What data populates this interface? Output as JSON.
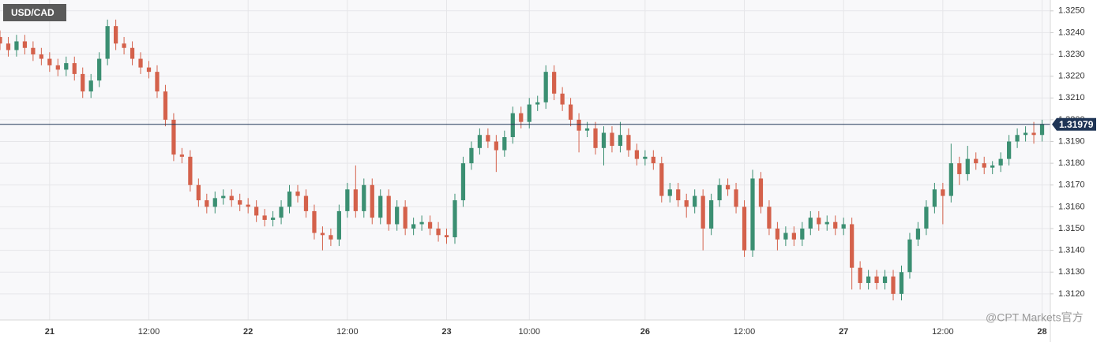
{
  "chart_data": {
    "type": "candlestick",
    "title": "USD/CAD",
    "watermark": "@CPT Markets官方",
    "up_color": "#3b8f72",
    "down_color": "#d4614b",
    "grid": true,
    "xlim": [
      0,
      127
    ],
    "xticks": [
      {
        "value": 6,
        "label": "21"
      },
      {
        "value": 18,
        "label": "12:00"
      },
      {
        "value": 30,
        "label": "22"
      },
      {
        "value": 42,
        "label": "12:00"
      },
      {
        "value": 54,
        "label": "23"
      },
      {
        "value": 64,
        "label": "10:00"
      },
      {
        "value": 78,
        "label": "26"
      },
      {
        "value": 90,
        "label": "12:00"
      },
      {
        "value": 102,
        "label": "27"
      },
      {
        "value": 114,
        "label": "12:00"
      },
      {
        "value": 126,
        "label": "28"
      }
    ],
    "ylim": [
      1.3108,
      1.3255
    ],
    "yticks": [
      {
        "value": 1.312,
        "label": "1.3120"
      },
      {
        "value": 1.313,
        "label": "1.3130"
      },
      {
        "value": 1.314,
        "label": "1.3140"
      },
      {
        "value": 1.315,
        "label": "1.3150"
      },
      {
        "value": 1.316,
        "label": "1.3160"
      },
      {
        "value": 1.317,
        "label": "1.3170"
      },
      {
        "value": 1.318,
        "label": "1.3180"
      },
      {
        "value": 1.319,
        "label": "1.3190"
      },
      {
        "value": 1.32,
        "label": "1.3200"
      },
      {
        "value": 1.321,
        "label": "1.3210"
      },
      {
        "value": 1.322,
        "label": "1.3220"
      },
      {
        "value": 1.323,
        "label": "1.3230"
      },
      {
        "value": 1.324,
        "label": "1.3240"
      },
      {
        "value": 1.325,
        "label": "1.3250"
      }
    ],
    "current_price": 1.31979,
    "current_price_color": "#1f3556",
    "ohlc": [
      [
        1.3238,
        1.3241,
        1.3232,
        1.3235
      ],
      [
        1.3235,
        1.3238,
        1.3229,
        1.3232
      ],
      [
        1.3232,
        1.3239,
        1.3229,
        1.3236
      ],
      [
        1.3236,
        1.3239,
        1.323,
        1.3233
      ],
      [
        1.3233,
        1.3236,
        1.3227,
        1.323
      ],
      [
        1.323,
        1.3233,
        1.3225,
        1.3228
      ],
      [
        1.3228,
        1.3231,
        1.3222,
        1.3225
      ],
      [
        1.3225,
        1.3228,
        1.322,
        1.3223
      ],
      [
        1.3223,
        1.3229,
        1.322,
        1.3226
      ],
      [
        1.3226,
        1.3229,
        1.3218,
        1.3221
      ],
      [
        1.3221,
        1.3224,
        1.321,
        1.3213
      ],
      [
        1.3213,
        1.3221,
        1.321,
        1.3218
      ],
      [
        1.3218,
        1.3231,
        1.3215,
        1.3228
      ],
      [
        1.3228,
        1.3246,
        1.3225,
        1.3243
      ],
      [
        1.3243,
        1.3246,
        1.3232,
        1.3235
      ],
      [
        1.3235,
        1.3238,
        1.323,
        1.3233
      ],
      [
        1.3233,
        1.3236,
        1.3225,
        1.3228
      ],
      [
        1.3228,
        1.3231,
        1.3221,
        1.3224
      ],
      [
        1.3224,
        1.3227,
        1.3219,
        1.3222
      ],
      [
        1.3222,
        1.3225,
        1.321,
        1.3213
      ],
      [
        1.3213,
        1.3216,
        1.3197,
        1.32
      ],
      [
        1.32,
        1.3203,
        1.3181,
        1.3184
      ],
      [
        1.3184,
        1.3187,
        1.318,
        1.3183
      ],
      [
        1.3183,
        1.3186,
        1.3167,
        1.317
      ],
      [
        1.317,
        1.3173,
        1.316,
        1.3163
      ],
      [
        1.3163,
        1.3166,
        1.3157,
        1.316
      ],
      [
        1.316,
        1.3167,
        1.3157,
        1.3164
      ],
      [
        1.3164,
        1.3168,
        1.3161,
        1.3165
      ],
      [
        1.3165,
        1.3168,
        1.316,
        1.3163
      ],
      [
        1.3163,
        1.3166,
        1.3158,
        1.3161
      ],
      [
        1.3161,
        1.3164,
        1.3157,
        1.316
      ],
      [
        1.316,
        1.3163,
        1.3153,
        1.3156
      ],
      [
        1.3156,
        1.3159,
        1.3151,
        1.3154
      ],
      [
        1.3154,
        1.3158,
        1.3151,
        1.3155
      ],
      [
        1.3155,
        1.3163,
        1.3152,
        1.316
      ],
      [
        1.316,
        1.317,
        1.3157,
        1.3167
      ],
      [
        1.3167,
        1.317,
        1.3162,
        1.3165
      ],
      [
        1.3165,
        1.3168,
        1.3155,
        1.3158
      ],
      [
        1.3158,
        1.3161,
        1.3145,
        1.3148
      ],
      [
        1.3148,
        1.3151,
        1.314,
        1.3147
      ],
      [
        1.3147,
        1.315,
        1.3142,
        1.3145
      ],
      [
        1.3145,
        1.3161,
        1.3142,
        1.3158
      ],
      [
        1.3158,
        1.3171,
        1.3155,
        1.3168
      ],
      [
        1.3168,
        1.3179,
        1.3155,
        1.3158
      ],
      [
        1.3158,
        1.3173,
        1.3155,
        1.317
      ],
      [
        1.317,
        1.3173,
        1.3152,
        1.3155
      ],
      [
        1.3155,
        1.3168,
        1.3152,
        1.3165
      ],
      [
        1.3165,
        1.3168,
        1.3149,
        1.3152
      ],
      [
        1.3152,
        1.3163,
        1.3149,
        1.316
      ],
      [
        1.316,
        1.3163,
        1.3147,
        1.315
      ],
      [
        1.315,
        1.3155,
        1.3147,
        1.3152
      ],
      [
        1.3152,
        1.3156,
        1.3149,
        1.3153
      ],
      [
        1.3153,
        1.3156,
        1.3147,
        1.315
      ],
      [
        1.315,
        1.3153,
        1.3144,
        1.3147
      ],
      [
        1.3147,
        1.315,
        1.3143,
        1.3146
      ],
      [
        1.3146,
        1.3166,
        1.3143,
        1.3163
      ],
      [
        1.3163,
        1.3183,
        1.316,
        1.318
      ],
      [
        1.318,
        1.319,
        1.3177,
        1.3187
      ],
      [
        1.3187,
        1.3196,
        1.3184,
        1.3193
      ],
      [
        1.3193,
        1.3196,
        1.3187,
        1.319
      ],
      [
        1.319,
        1.3193,
        1.3176,
        1.3186
      ],
      [
        1.3186,
        1.3195,
        1.3183,
        1.3192
      ],
      [
        1.3192,
        1.3206,
        1.3189,
        1.3203
      ],
      [
        1.3203,
        1.3206,
        1.3196,
        1.3199
      ],
      [
        1.3199,
        1.321,
        1.3196,
        1.3207
      ],
      [
        1.3207,
        1.3211,
        1.3204,
        1.3208
      ],
      [
        1.3208,
        1.3225,
        1.3205,
        1.3222
      ],
      [
        1.3222,
        1.3225,
        1.3209,
        1.3212
      ],
      [
        1.3212,
        1.3215,
        1.3204,
        1.3207
      ],
      [
        1.3207,
        1.321,
        1.3197,
        1.32
      ],
      [
        1.32,
        1.3203,
        1.3185,
        1.3195
      ],
      [
        1.3195,
        1.3199,
        1.3192,
        1.3196
      ],
      [
        1.3196,
        1.3199,
        1.3184,
        1.3187
      ],
      [
        1.3187,
        1.3197,
        1.3179,
        1.3194
      ],
      [
        1.3194,
        1.3197,
        1.3185,
        1.3188
      ],
      [
        1.3188,
        1.3199,
        1.3185,
        1.3193
      ],
      [
        1.3193,
        1.3196,
        1.3183,
        1.3186
      ],
      [
        1.3186,
        1.3189,
        1.3179,
        1.3182
      ],
      [
        1.3182,
        1.3186,
        1.3179,
        1.3183
      ],
      [
        1.3183,
        1.3186,
        1.3177,
        1.318
      ],
      [
        1.318,
        1.3183,
        1.3162,
        1.3165
      ],
      [
        1.3165,
        1.3171,
        1.3162,
        1.3168
      ],
      [
        1.3168,
        1.3171,
        1.316,
        1.3163
      ],
      [
        1.3163,
        1.3166,
        1.3155,
        1.316
      ],
      [
        1.316,
        1.3168,
        1.3157,
        1.3165
      ],
      [
        1.3165,
        1.3168,
        1.314,
        1.315
      ],
      [
        1.315,
        1.3166,
        1.3147,
        1.3163
      ],
      [
        1.3163,
        1.3173,
        1.316,
        1.317
      ],
      [
        1.317,
        1.3173,
        1.3165,
        1.3168
      ],
      [
        1.3168,
        1.3171,
        1.3157,
        1.316
      ],
      [
        1.316,
        1.3163,
        1.3137,
        1.314
      ],
      [
        1.314,
        1.3177,
        1.3137,
        1.3173
      ],
      [
        1.3173,
        1.3176,
        1.3157,
        1.316
      ],
      [
        1.316,
        1.3163,
        1.3147,
        1.315
      ],
      [
        1.315,
        1.3153,
        1.314,
        1.3145
      ],
      [
        1.3145,
        1.3151,
        1.3142,
        1.3148
      ],
      [
        1.3148,
        1.3151,
        1.3142,
        1.3145
      ],
      [
        1.3145,
        1.3153,
        1.3142,
        1.315
      ],
      [
        1.315,
        1.3158,
        1.3147,
        1.3155
      ],
      [
        1.3155,
        1.3158,
        1.3149,
        1.3152
      ],
      [
        1.3152,
        1.3156,
        1.3149,
        1.3153
      ],
      [
        1.3153,
        1.3156,
        1.3147,
        1.315
      ],
      [
        1.315,
        1.3155,
        1.3147,
        1.3152
      ],
      [
        1.3152,
        1.3155,
        1.3122,
        1.3132
      ],
      [
        1.3132,
        1.3135,
        1.3122,
        1.3125
      ],
      [
        1.3125,
        1.3131,
        1.3122,
        1.3128
      ],
      [
        1.3128,
        1.3131,
        1.3122,
        1.3125
      ],
      [
        1.3125,
        1.3131,
        1.3122,
        1.3128
      ],
      [
        1.3128,
        1.3131,
        1.3117,
        1.312
      ],
      [
        1.312,
        1.3133,
        1.3117,
        1.313
      ],
      [
        1.313,
        1.3148,
        1.3127,
        1.3145
      ],
      [
        1.3145,
        1.3153,
        1.3142,
        1.315
      ],
      [
        1.315,
        1.3163,
        1.3147,
        1.316
      ],
      [
        1.316,
        1.3171,
        1.3157,
        1.3168
      ],
      [
        1.3168,
        1.3171,
        1.3152,
        1.3165
      ],
      [
        1.3165,
        1.3189,
        1.3162,
        1.318
      ],
      [
        1.318,
        1.3183,
        1.317,
        1.3175
      ],
      [
        1.3175,
        1.3188,
        1.3172,
        1.3182
      ],
      [
        1.3182,
        1.3185,
        1.3177,
        1.318
      ],
      [
        1.318,
        1.3183,
        1.3175,
        1.3178
      ],
      [
        1.3178,
        1.3181,
        1.3175,
        1.3179
      ],
      [
        1.3179,
        1.3185,
        1.3176,
        1.3182
      ],
      [
        1.3182,
        1.3193,
        1.3179,
        1.319
      ],
      [
        1.319,
        1.3196,
        1.3187,
        1.3193
      ],
      [
        1.3193,
        1.3197,
        1.319,
        1.3194
      ],
      [
        1.3194,
        1.3199,
        1.3189,
        1.3193
      ],
      [
        1.3193,
        1.32,
        1.319,
        1.3198
      ]
    ]
  }
}
